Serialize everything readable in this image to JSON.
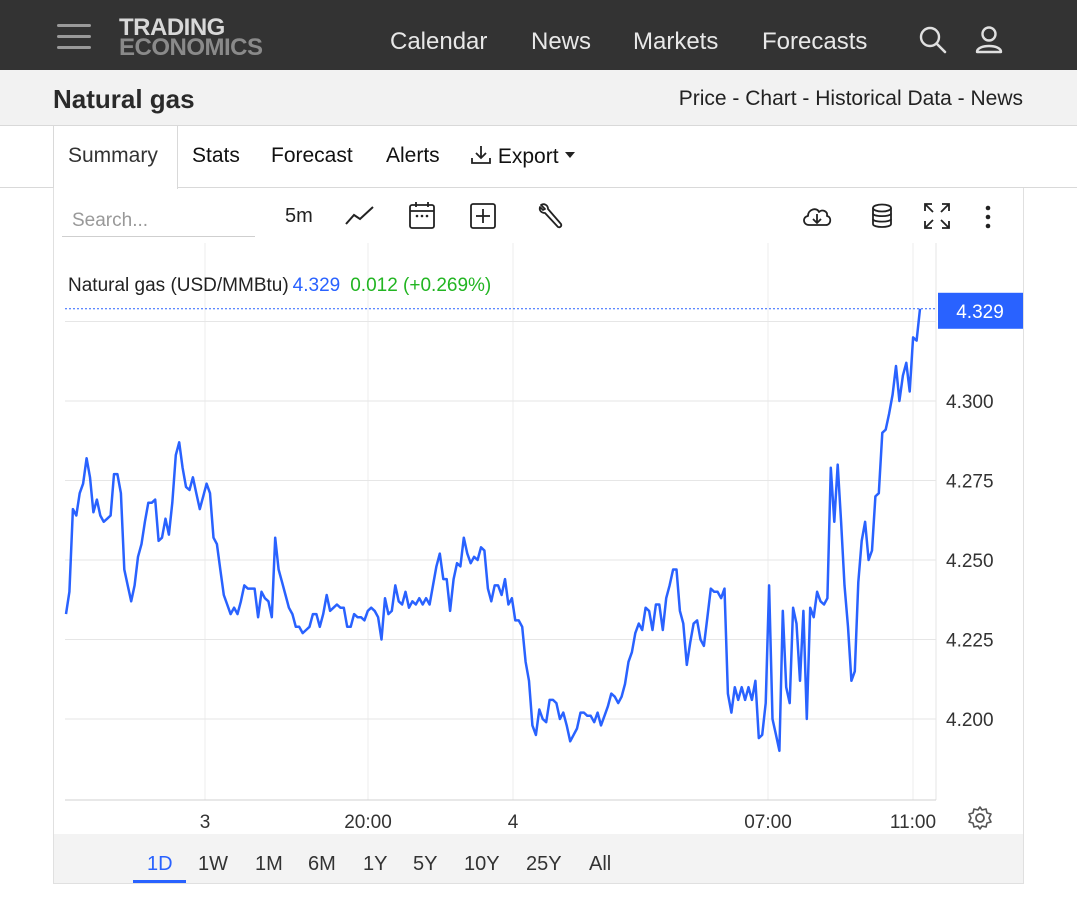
{
  "header": {
    "logo_line1": "TRADING",
    "logo_line2": "ECONOMICS",
    "nav": [
      "Calendar",
      "News",
      "Markets",
      "Forecasts"
    ],
    "icons": [
      "menu-icon",
      "search-icon",
      "user-icon"
    ]
  },
  "page": {
    "title": "Natural gas",
    "breadcrumb": [
      "Price",
      "Chart",
      "Historical Data",
      "News"
    ],
    "breadcrumb_sep": " - "
  },
  "tabs": {
    "items": [
      "Summary",
      "Stats",
      "Forecast",
      "Alerts",
      "Export"
    ],
    "active": "Summary"
  },
  "toolbar": {
    "search_placeholder": "Search...",
    "interval": "5m",
    "icons": [
      "line-chart-icon",
      "calendar-icon",
      "add-compare-icon",
      "wrench-icon",
      "download-cloud-icon",
      "database-icon",
      "fullscreen-icon",
      "more-vert-icon"
    ]
  },
  "legend": {
    "name": "Natural gas (USD/MMBtu)",
    "value": "4.329",
    "change": "0.012",
    "change_pct": "(+0.269%)"
  },
  "ranges": {
    "items": [
      "1D",
      "1W",
      "1M",
      "6M",
      "1Y",
      "5Y",
      "10Y",
      "25Y",
      "All"
    ],
    "active": "1D"
  },
  "colors": {
    "line": "#2962ff",
    "positive": "#22b522",
    "topbar": "#333333"
  },
  "chart_data": {
    "type": "line",
    "title": "",
    "xlabel": "",
    "ylabel": "",
    "x_tick_labels": [
      "3",
      "20:00",
      "4",
      "07:00",
      "11:00"
    ],
    "y_tick_labels": [
      "4.200",
      "4.225",
      "4.250",
      "4.275",
      "4.300"
    ],
    "ylim": [
      4.175,
      4.35
    ],
    "last_value_label": "4.329",
    "grid": true,
    "series": [
      {
        "name": "Natural gas (USD/MMBtu)",
        "values": [
          4.233,
          4.24,
          4.266,
          4.264,
          4.271,
          4.274,
          4.282,
          4.276,
          4.265,
          4.269,
          4.264,
          4.262,
          4.263,
          4.264,
          4.277,
          4.277,
          4.271,
          4.247,
          4.242,
          4.237,
          4.242,
          4.251,
          4.255,
          4.262,
          4.268,
          4.268,
          4.269,
          4.256,
          4.257,
          4.263,
          4.258,
          4.268,
          4.283,
          4.287,
          4.279,
          4.273,
          4.272,
          4.276,
          4.271,
          4.266,
          4.27,
          4.274,
          4.271,
          4.257,
          4.255,
          4.247,
          4.239,
          4.236,
          4.233,
          4.235,
          4.233,
          4.237,
          4.242,
          4.241,
          4.241,
          4.241,
          4.232,
          4.24,
          4.238,
          4.237,
          4.232,
          4.257,
          4.247,
          4.243,
          4.239,
          4.235,
          4.233,
          4.229,
          4.229,
          4.227,
          4.228,
          4.229,
          4.233,
          4.233,
          4.229,
          4.233,
          4.239,
          4.234,
          4.235,
          4.236,
          4.235,
          4.235,
          4.229,
          4.229,
          4.233,
          4.232,
          4.232,
          4.231,
          4.234,
          4.235,
          4.234,
          4.232,
          4.225,
          4.238,
          4.233,
          4.234,
          4.242,
          4.237,
          4.236,
          4.24,
          4.235,
          4.237,
          4.236,
          4.238,
          4.236,
          4.238,
          4.236,
          4.242,
          4.248,
          4.252,
          4.244,
          4.244,
          4.234,
          4.244,
          4.249,
          4.248,
          4.257,
          4.252,
          4.249,
          4.251,
          4.25,
          4.254,
          4.253,
          4.241,
          4.237,
          4.242,
          4.242,
          4.239,
          4.244,
          4.236,
          4.238,
          4.231,
          4.231,
          4.229,
          4.218,
          4.212,
          4.198,
          4.195,
          4.203,
          4.2,
          4.199,
          4.206,
          4.206,
          4.205,
          4.2,
          4.202,
          4.198,
          4.193,
          4.195,
          4.197,
          4.202,
          4.202,
          4.201,
          4.201,
          4.199,
          4.202,
          4.198,
          4.201,
          4.204,
          4.208,
          4.207,
          4.205,
          4.207,
          4.211,
          4.218,
          4.221,
          4.227,
          4.23,
          4.228,
          4.235,
          4.234,
          4.228,
          4.236,
          4.236,
          4.228,
          4.238,
          4.242,
          4.247,
          4.247,
          4.234,
          4.23,
          4.217,
          4.224,
          4.23,
          4.231,
          4.225,
          4.223,
          4.232,
          4.241,
          4.24,
          4.24,
          4.238,
          4.241,
          4.208,
          4.202,
          4.21,
          4.206,
          4.21,
          4.206,
          4.21,
          4.206,
          4.212,
          4.194,
          4.195,
          4.205,
          4.242,
          4.2,
          4.195,
          4.19,
          4.234,
          4.21,
          4.205,
          4.235,
          4.23,
          4.212,
          4.234,
          4.2,
          4.235,
          4.232,
          4.24,
          4.237,
          4.236,
          4.238,
          4.279,
          4.262,
          4.28,
          4.262,
          4.242,
          4.229,
          4.212,
          4.215,
          4.243,
          4.256,
          4.262,
          4.25,
          4.253,
          4.27,
          4.271,
          4.29,
          4.291,
          4.296,
          4.302,
          4.311,
          4.3,
          4.308,
          4.312,
          4.303,
          4.32,
          4.319,
          4.329
        ]
      }
    ]
  }
}
